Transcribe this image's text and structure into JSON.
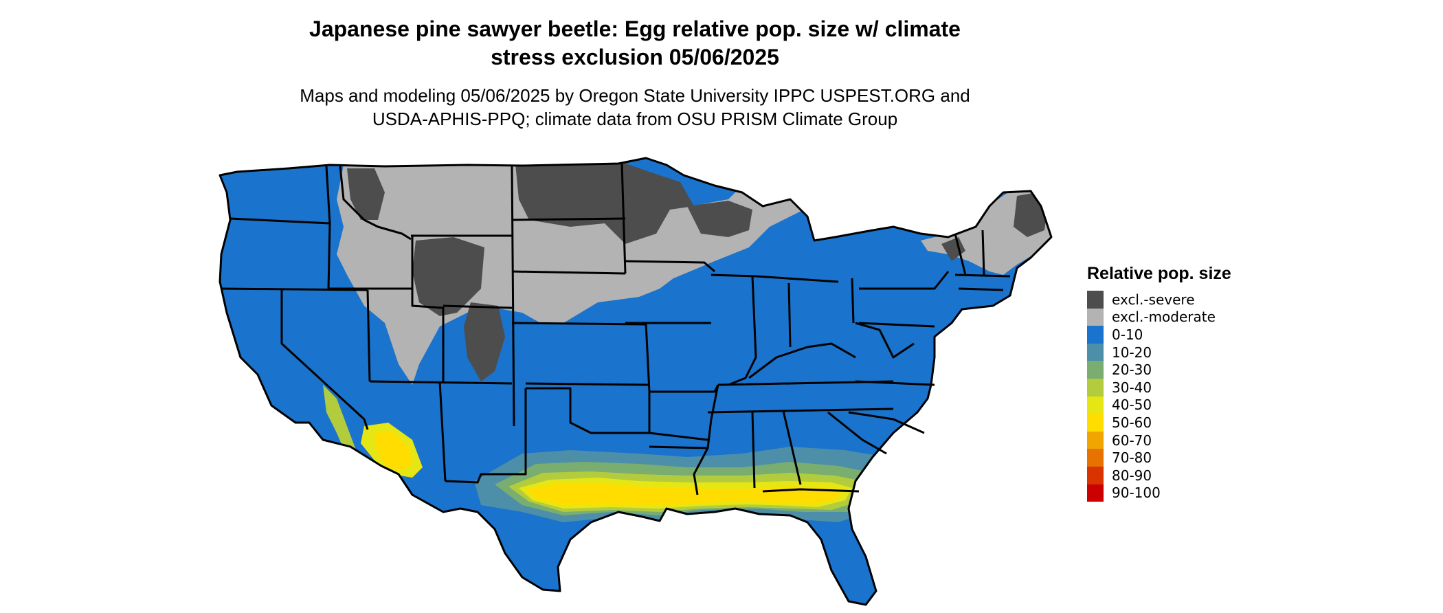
{
  "title_lines": [
    "Japanese pine sawyer beetle: Egg relative pop. size w/ climate",
    "stress exclusion 05/06/2025"
  ],
  "subtitle_lines": [
    "Maps and modeling 05/06/2025 by Oregon State University IPPC USPEST.ORG and",
    "USDA-APHIS-PPQ; climate data from OSU PRISM Climate Group"
  ],
  "legend": {
    "title": "Relative pop. size",
    "items": [
      {
        "label": "excl.-severe",
        "color": "#4d4d4d"
      },
      {
        "label": "excl.-moderate",
        "color": "#b3b3b3"
      },
      {
        "label": "0-10",
        "color": "#1a73cc"
      },
      {
        "label": "10-20",
        "color": "#4d8fa8"
      },
      {
        "label": "20-30",
        "color": "#7aad70"
      },
      {
        "label": "30-40",
        "color": "#b3cc3d"
      },
      {
        "label": "40-50",
        "color": "#e6e614"
      },
      {
        "label": "50-60",
        "color": "#ffdd00"
      },
      {
        "label": "60-70",
        "color": "#f0a500"
      },
      {
        "label": "70-80",
        "color": "#e67300"
      },
      {
        "label": "80-90",
        "color": "#d93300"
      },
      {
        "label": "90-100",
        "color": "#cc0000"
      }
    ]
  }
}
